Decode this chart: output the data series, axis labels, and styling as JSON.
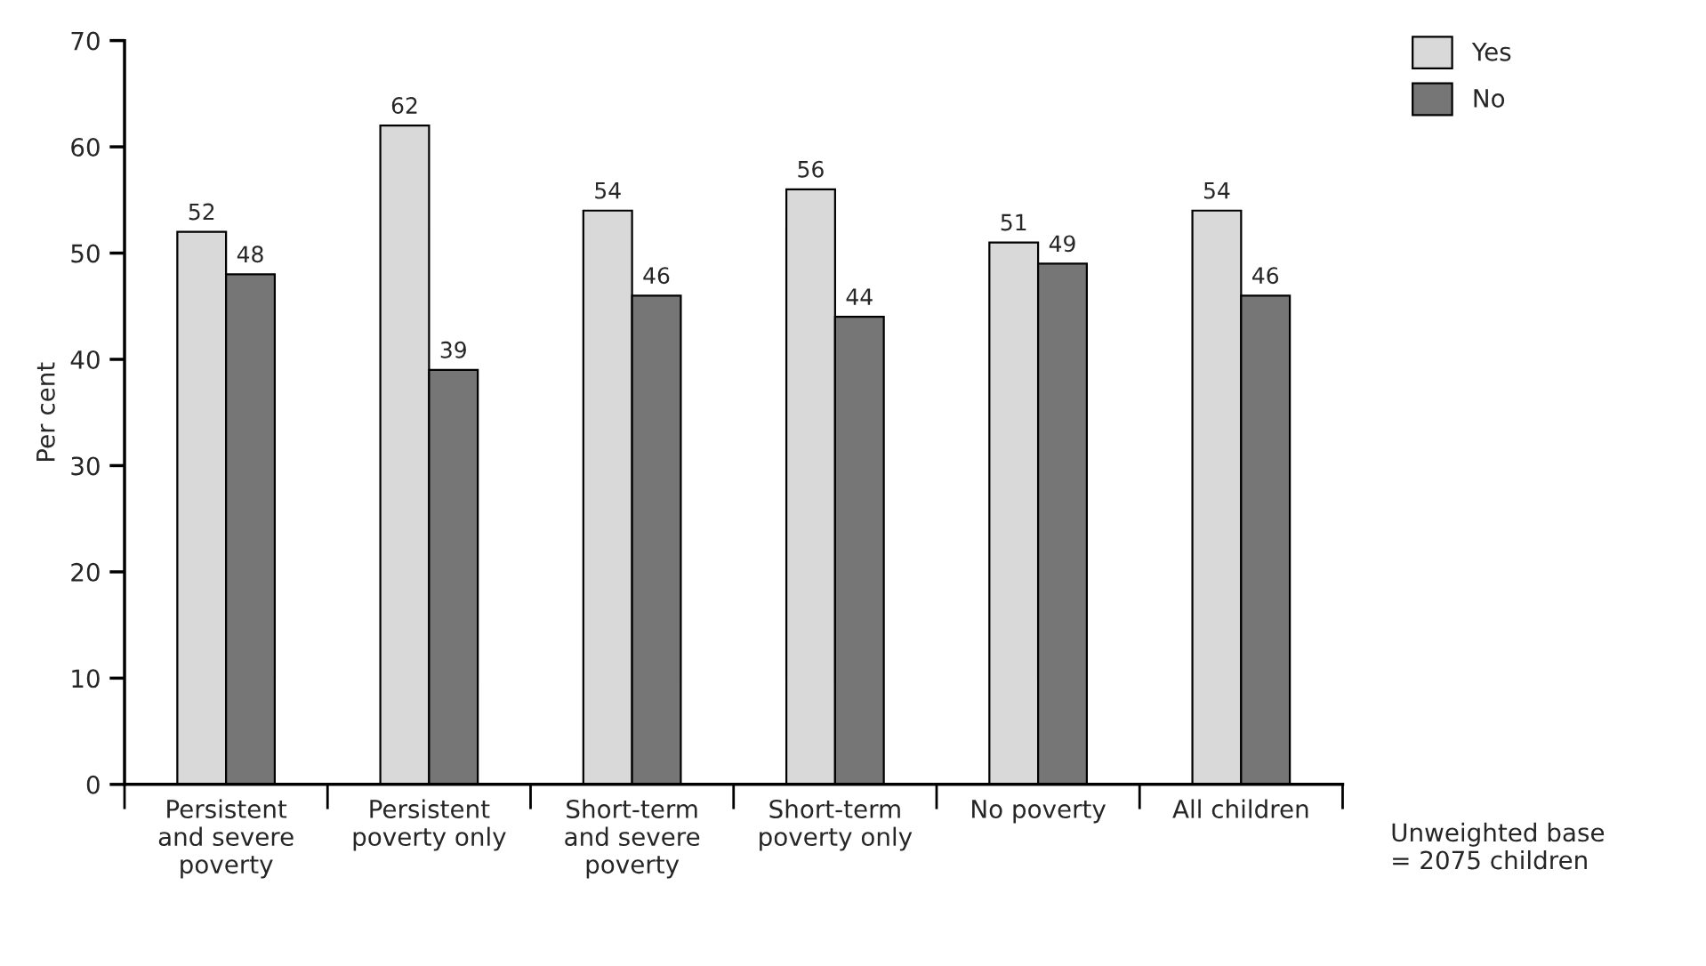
{
  "chart_data": {
    "type": "bar",
    "ylabel": "Per cent",
    "categories": [
      "Persistent\nand severe\npoverty",
      "Persistent\npoverty only",
      "Short-term\nand severe\npoverty",
      "Short-term\npoverty only",
      "No poverty",
      "All children"
    ],
    "series": [
      {
        "name": "Yes",
        "color": "#d9d9d9",
        "values": [
          52,
          62,
          54,
          56,
          51,
          54
        ]
      },
      {
        "name": "No",
        "color": "#767676",
        "values": [
          48,
          39,
          46,
          44,
          49,
          46
        ]
      }
    ],
    "ylim": [
      0,
      70
    ],
    "yticks": [
      0,
      10,
      20,
      30,
      40,
      50,
      60,
      70
    ],
    "data_labels": true,
    "grid": false,
    "legend": "top right",
    "annotations": [
      "Unweighted base\n= 2075 children"
    ]
  }
}
